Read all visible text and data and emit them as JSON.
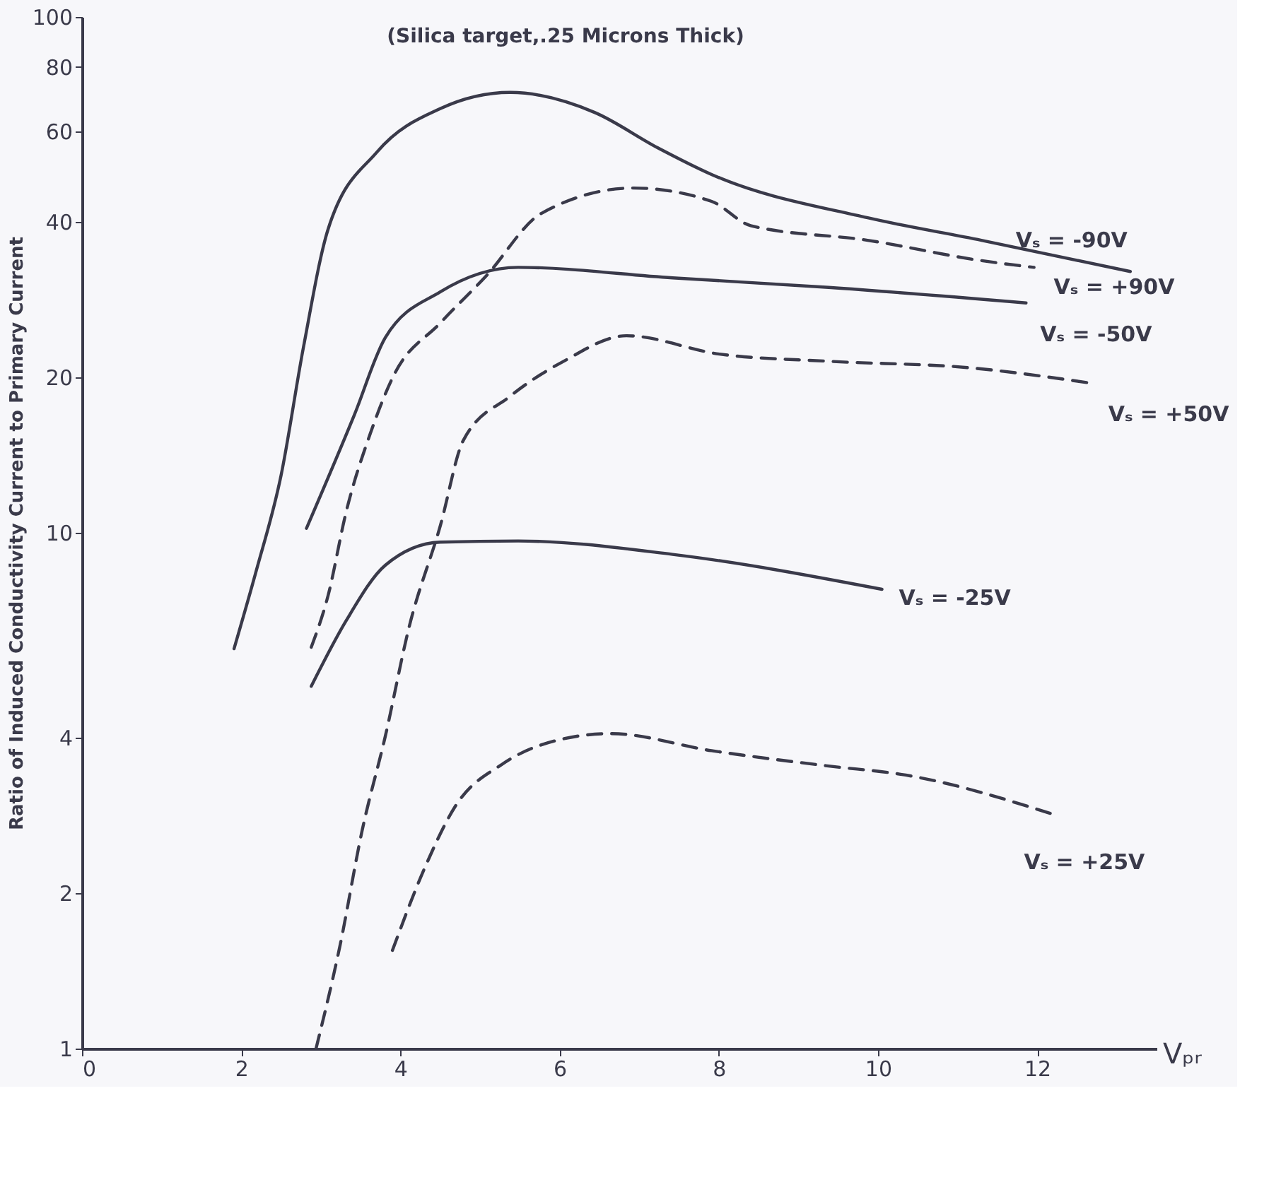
{
  "chart_data": {
    "type": "line",
    "title": "(Silica target,.25 Microns Thick)",
    "xlabel": "Vₚᵣ",
    "ylabel": "Ratio of Induced Conductivity Current to Primary Current",
    "log": "y",
    "xlim": [
      0,
      13.5
    ],
    "xticks": [
      0,
      2,
      4,
      6,
      8,
      10,
      12
    ],
    "ylim": [
      1,
      100
    ],
    "yticks": [
      1,
      2,
      4,
      10,
      20,
      40,
      60,
      80,
      100
    ],
    "grid": false,
    "legend": false,
    "marker": "none",
    "series": [
      {
        "name": "Vₛ = -90V",
        "color": "#3a3a4a",
        "line_style": "solid",
        "x": [
          1.91,
          2.19,
          2.5,
          2.78,
          3.09,
          3.71,
          4.5,
          5.38,
          6.44,
          7.23,
          7.91,
          9.87,
          11.3,
          13.17
        ],
        "values": [
          5.96,
          8.45,
          12.9,
          22.8,
          38.7,
          54.8,
          66.4,
          71.4,
          65.3,
          55.8,
          49.5,
          40.8,
          36.9,
          32.1
        ]
      },
      {
        "name": "Vₛ = +90V",
        "color": "#3a3a4a",
        "line_style": "dashed",
        "x": [
          2.88,
          3.09,
          3.32,
          3.63,
          3.91,
          4.5,
          5.08,
          5.77,
          6.93,
          7.91,
          8.4,
          9.87,
          11.3,
          11.96
        ],
        "values": [
          6.0,
          7.54,
          11.0,
          15.7,
          20.1,
          25.5,
          31.5,
          41.6,
          46.6,
          43.9,
          39.4,
          36.9,
          33.7,
          32.7
        ]
      },
      {
        "name": "Vₛ = -50V",
        "color": "#3a3a4a",
        "line_style": "solid",
        "x": [
          2.82,
          3.42,
          3.81,
          4.5,
          5.48,
          7.42,
          9.38,
          11.86
        ],
        "values": [
          10.2,
          16.9,
          23.9,
          29.3,
          32.7,
          31.2,
          29.9,
          27.9
        ]
      },
      {
        "name": "Vₛ = +50V",
        "color": "#3a3a4a",
        "line_style": "dashed",
        "x": [
          2.94,
          3.24,
          3.52,
          3.81,
          4.11,
          4.5,
          4.79,
          5.38,
          6.05,
          6.84,
          8.01,
          9.38,
          11.13,
          12.68
        ],
        "values": [
          1.0,
          1.58,
          2.65,
          4.03,
          6.57,
          10.3,
          15.1,
          18.4,
          21.5,
          24.1,
          22.2,
          21.5,
          20.9,
          19.5
        ]
      },
      {
        "name": "Vₛ = -25V",
        "color": "#3a3a4a",
        "line_style": "solid",
        "x": [
          2.88,
          3.32,
          3.81,
          4.5,
          5.48,
          7.42,
          10.05
        ],
        "values": [
          5.04,
          6.76,
          8.65,
          9.59,
          9.64,
          9.08,
          7.77
        ]
      },
      {
        "name": "Vₛ = +25V",
        "color": "#3a3a4a",
        "line_style": "dashed",
        "x": [
          3.9,
          4.3,
          4.69,
          5.28,
          5.97,
          6.64,
          7.91,
          9.38,
          10.35,
          12.19
        ],
        "values": [
          1.55,
          2.23,
          2.95,
          3.56,
          3.96,
          4.08,
          3.78,
          3.53,
          3.39,
          2.85
        ]
      }
    ]
  }
}
